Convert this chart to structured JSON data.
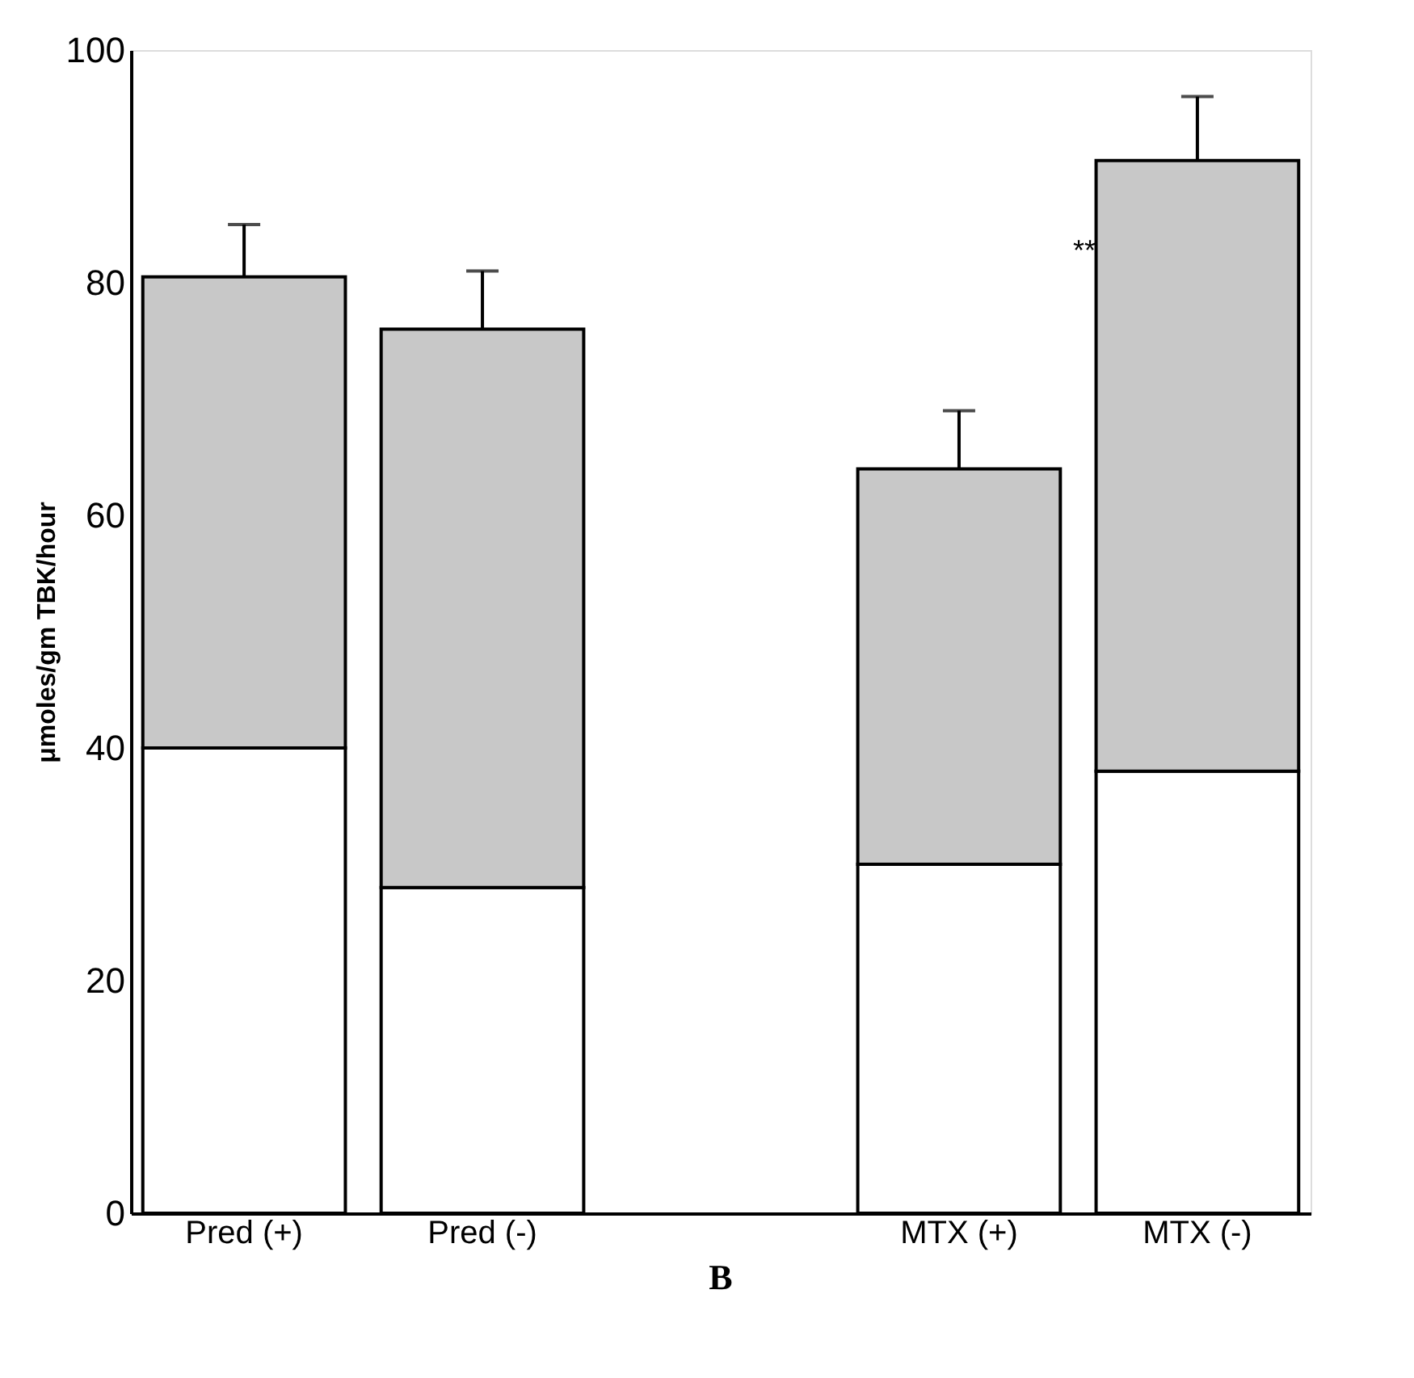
{
  "chart_data": {
    "type": "bar",
    "stacked": true,
    "categories": [
      "Pred (+)",
      "Pred (-)",
      null,
      "MTX (+)",
      "MTX (-)"
    ],
    "ylabel": "μmoles/gm TBK/hour",
    "ylim": [
      0,
      100
    ],
    "yticks": [
      0,
      20,
      40,
      60,
      80,
      100
    ],
    "grid": false,
    "series": [
      {
        "color": "#ffffff",
        "values": [
          40,
          28,
          null,
          30,
          38
        ]
      },
      {
        "color": "#c8c8c8",
        "values": [
          40.5,
          48,
          null,
          34,
          52.5
        ],
        "errors": [
          4.5,
          5,
          null,
          5,
          5.5
        ]
      }
    ],
    "annotations": [
      "**",
      "B"
    ]
  }
}
